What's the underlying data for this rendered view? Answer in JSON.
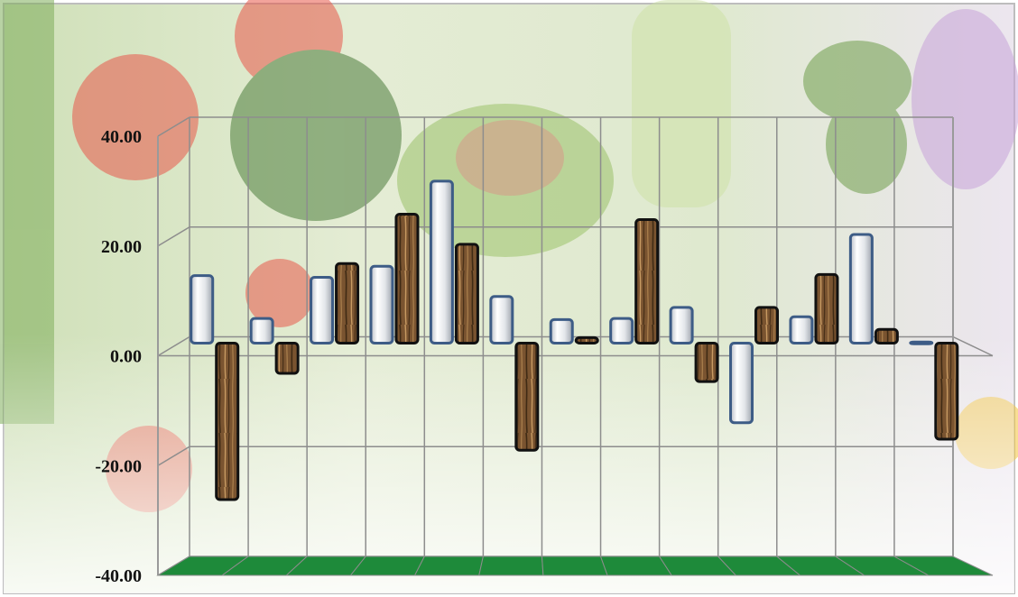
{
  "chart_data": {
    "type": "bar",
    "title": "",
    "xlabel": "",
    "ylabel": "",
    "ylim": [
      -40,
      40
    ],
    "yticks": [
      "40.00",
      "20.00",
      "0.00",
      "-20.00",
      "-40.00"
    ],
    "tick_values": [
      40,
      20,
      0,
      -20,
      -40
    ],
    "categories": [
      "",
      "",
      "",
      "",
      "",
      "",
      "",
      "",
      "",
      "",
      "",
      "",
      ""
    ],
    "series": [
      {
        "values": [
          12.3,
          4.5,
          12.0,
          14.0,
          29.5,
          8.5,
          4.3,
          4.5,
          6.5,
          -14.5,
          4.8,
          19.8,
          0.2
        ]
      },
      {
        "values": [
          -28.5,
          -5.5,
          14.5,
          23.5,
          18.0,
          -19.5,
          1.0,
          22.5,
          -7.0,
          6.5,
          12.5,
          2.5,
          -17.5
        ]
      }
    ],
    "grid": true,
    "legend": "none",
    "colors": {
      "series1": "#eef0f3",
      "series1_edge": "#3d5c86",
      "series2": "#6e4b2a",
      "series2_edge": "#111111",
      "floor": "#1e8a3a",
      "grid": "#8d8d8d",
      "frame": "#9a9a9a"
    }
  }
}
